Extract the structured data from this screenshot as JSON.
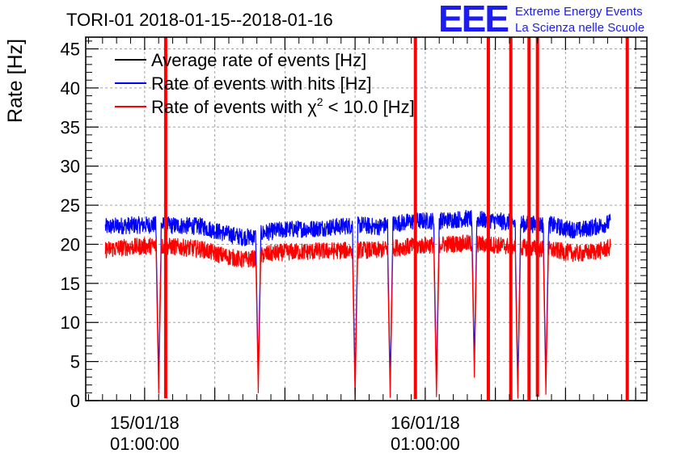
{
  "chart_data": {
    "type": "line",
    "title": "TORI-01 2018-01-15--2018-01-16",
    "ylabel": "Rate [Hz]",
    "xlabel": "",
    "ylim": [
      0,
      46.5
    ],
    "yticks": [
      0,
      5,
      10,
      15,
      20,
      25,
      30,
      35,
      40,
      45
    ],
    "x_hours_range": [
      -4.2,
      35.8
    ],
    "x_tick_labels": [
      {
        "hour": 0,
        "line1": "15/01/18",
        "line2": "01:00:00"
      },
      {
        "hour": 20,
        "line1": "16/01/18",
        "line2": "01:00:00"
      }
    ],
    "grid": true,
    "legend_position": "top-left",
    "logo": {
      "letters": "EEE",
      "line1": "Extreme Energy Events",
      "line2": "La Scienza nelle Scuole"
    },
    "series": [
      {
        "name": "Average rate of events [Hz]",
        "color": "#000000",
        "legend_label": "Average rate of events [Hz]",
        "points": []
      },
      {
        "name": "Rate of events with hits [Hz]",
        "color": "#0000ff",
        "legend_label": "Rate of events with hits [Hz]",
        "points": [
          [
            -2.8,
            22.2
          ],
          [
            -1.5,
            22.4
          ],
          [
            0.5,
            22.5
          ],
          [
            2.0,
            22.4
          ],
          [
            4.0,
            22.3
          ],
          [
            5.5,
            21.5
          ],
          [
            7.0,
            20.9
          ],
          [
            8.0,
            21.0
          ],
          [
            8.5,
            21.5
          ],
          [
            10.0,
            21.9
          ],
          [
            12.0,
            22.0
          ],
          [
            14.0,
            22.3
          ],
          [
            15.5,
            22.5
          ],
          [
            16.5,
            22.2
          ],
          [
            18.0,
            22.7
          ],
          [
            19.5,
            23.0
          ],
          [
            21.0,
            23.0
          ],
          [
            23.0,
            23.3
          ],
          [
            25.0,
            23.0
          ],
          [
            27.0,
            22.6
          ],
          [
            29.0,
            22.5
          ],
          [
            30.0,
            22.0
          ],
          [
            31.0,
            21.8
          ],
          [
            32.5,
            22.4
          ],
          [
            33.2,
            22.8
          ]
        ]
      },
      {
        "name": "Rate of events with χ² < 10.0 [Hz]",
        "color": "#ff0000",
        "legend_label": "Rate of events with χ",
        "legend_sup": "2",
        "legend_suffix": " < 10.0 [Hz]",
        "points": [
          [
            -2.8,
            19.3
          ],
          [
            -1.5,
            19.6
          ],
          [
            0.5,
            19.8
          ],
          [
            2.0,
            19.7
          ],
          [
            4.0,
            19.4
          ],
          [
            5.5,
            18.6
          ],
          [
            7.0,
            18.0
          ],
          [
            8.0,
            18.2
          ],
          [
            8.5,
            18.7
          ],
          [
            10.0,
            19.0
          ],
          [
            12.0,
            19.1
          ],
          [
            14.0,
            19.2
          ],
          [
            15.5,
            19.3
          ],
          [
            16.5,
            19.2
          ],
          [
            18.0,
            19.6
          ],
          [
            19.5,
            19.8
          ],
          [
            21.0,
            20.0
          ],
          [
            23.0,
            20.1
          ],
          [
            25.0,
            19.9
          ],
          [
            27.0,
            19.6
          ],
          [
            29.0,
            19.3
          ],
          [
            30.0,
            19.0
          ],
          [
            31.0,
            18.8
          ],
          [
            32.5,
            19.2
          ],
          [
            33.2,
            19.6
          ]
        ]
      }
    ],
    "dips": [
      {
        "hour": 1.0,
        "min": 0.9
      },
      {
        "hour": 8.1,
        "min": 1.0
      },
      {
        "hour": 15.0,
        "min": 0.3
      },
      {
        "hour": 17.5,
        "min": 0.4
      },
      {
        "hour": 20.8,
        "min": 0.5
      },
      {
        "hour": 23.5,
        "min": 3.0
      },
      {
        "hour": 26.6,
        "min": 0.3
      },
      {
        "hour": 28.6,
        "min": 0.8
      }
    ],
    "spikes": [
      {
        "hour": 1.5,
        "min": 0.3
      },
      {
        "hour": 19.3,
        "min": 0.2
      },
      {
        "hour": 24.5,
        "min": 0.0
      },
      {
        "hour": 26.1,
        "min": 0.0
      },
      {
        "hour": 27.4,
        "min": 0.0
      },
      {
        "hour": 28.0,
        "min": 0.5
      },
      {
        "hour": 34.4,
        "min": 0.0
      }
    ]
  }
}
